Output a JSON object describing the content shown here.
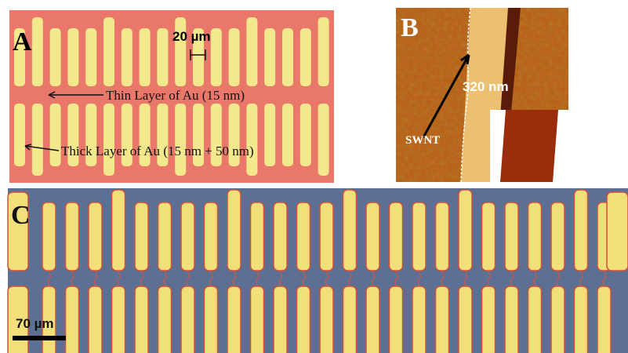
{
  "panels": [
    {
      "label": "A",
      "scale_bar": "20 µm",
      "annotations": [
        "Thin Layer of Au (15 nm)",
        "Thick Layer of Au (15 nm + 50 nm)"
      ]
    },
    {
      "label": "B",
      "annotations": [
        "320 nm",
        "SWNT"
      ]
    },
    {
      "label": "C",
      "scale_bar": "70 µm"
    }
  ]
}
